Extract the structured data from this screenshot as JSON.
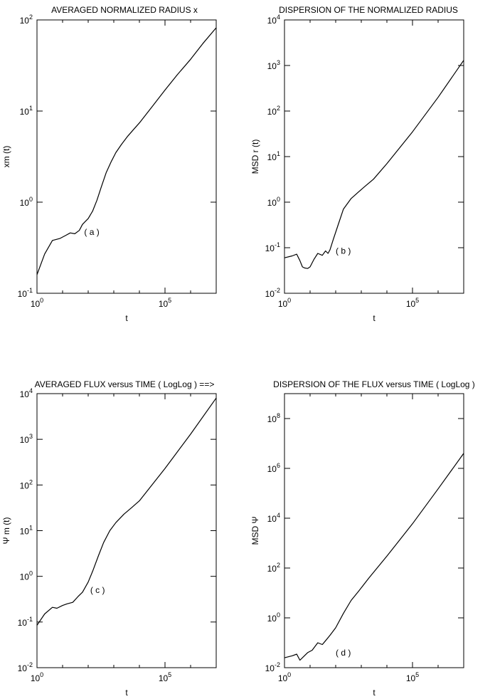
{
  "chart_data": [
    {
      "type": "line",
      "title": "AVERAGED NORMALIZED RADIUS x",
      "xlabel": "t",
      "ylabel": "xm (t)",
      "annotation": "( a )",
      "annotation_at": [
        70,
        0.47
      ],
      "x_scale": "log",
      "y_scale": "log",
      "xlim": [
        1,
        10000000
      ],
      "ylim": [
        0.1,
        100
      ],
      "x_ticks": [
        {
          "v": 1,
          "base": "10",
          "exp": "0"
        },
        {
          "v": 100000,
          "base": "10",
          "exp": "5"
        }
      ],
      "y_ticks": [
        {
          "v": 0.1,
          "base": "10",
          "exp": "-1"
        },
        {
          "v": 1,
          "base": "10",
          "exp": "0"
        },
        {
          "v": 10,
          "base": "10",
          "exp": "1"
        },
        {
          "v": 100,
          "base": "10",
          "exp": "2"
        }
      ],
      "grid": false,
      "series": [
        {
          "x": [
            1,
            2,
            4,
            8,
            13,
            20,
            30,
            45,
            60,
            80,
            100,
            150,
            220,
            320,
            500,
            800,
            1200,
            2000,
            3500,
            6000,
            10000,
            30000,
            100000,
            300000,
            1000000,
            3000000,
            10000000
          ],
          "y": [
            0.16,
            0.27,
            0.38,
            0.4,
            0.43,
            0.46,
            0.45,
            0.49,
            0.57,
            0.62,
            0.66,
            0.8,
            1.05,
            1.45,
            2.1,
            2.8,
            3.5,
            4.3,
            5.3,
            6.3,
            7.4,
            11,
            17,
            25,
            37,
            55,
            82
          ]
        }
      ]
    },
    {
      "type": "line",
      "title": "DISPERSION OF THE NORMALIZED RADIUS",
      "xlabel": "t",
      "ylabel": "MSD r (t)",
      "annotation": "( b )",
      "annotation_at": [
        100,
        0.085
      ],
      "x_scale": "log",
      "y_scale": "log",
      "xlim": [
        1,
        10000000
      ],
      "ylim": [
        0.01,
        10000
      ],
      "x_ticks": [
        {
          "v": 1,
          "base": "10",
          "exp": "0"
        },
        {
          "v": 100000,
          "base": "10",
          "exp": "5"
        }
      ],
      "y_ticks": [
        {
          "v": 0.01,
          "base": "10",
          "exp": "-2"
        },
        {
          "v": 0.1,
          "base": "10",
          "exp": "-1"
        },
        {
          "v": 1,
          "base": "10",
          "exp": "0"
        },
        {
          "v": 10,
          "base": "10",
          "exp": "1"
        },
        {
          "v": 100,
          "base": "10",
          "exp": "2"
        },
        {
          "v": 1000,
          "base": "10",
          "exp": "3"
        },
        {
          "v": 10000,
          "base": "10",
          "exp": "4"
        }
      ],
      "grid": false,
      "series": [
        {
          "x": [
            1,
            2,
            3,
            4,
            5,
            6,
            8,
            10,
            14,
            20,
            30,
            40,
            50,
            60,
            80,
            120,
            200,
            400,
            800,
            1500,
            3000,
            10000,
            100000,
            1000000,
            10000000
          ],
          "y": [
            0.06,
            0.066,
            0.072,
            0.052,
            0.038,
            0.036,
            0.035,
            0.038,
            0.055,
            0.075,
            0.068,
            0.085,
            0.075,
            0.09,
            0.15,
            0.3,
            0.7,
            1.2,
            1.7,
            2.3,
            3.2,
            7,
            35,
            200,
            1300
          ]
        }
      ]
    },
    {
      "type": "line",
      "title": "AVERAGED FLUX versus TIME ( LogLog ) ==>",
      "xlabel": "t",
      "ylabel": "Ψ m (t)",
      "annotation": "( c )",
      "annotation_at": [
        120,
        0.5
      ],
      "x_scale": "log",
      "y_scale": "log",
      "xlim": [
        1,
        10000000
      ],
      "ylim": [
        0.01,
        10000
      ],
      "x_ticks": [
        {
          "v": 1,
          "base": "10",
          "exp": "0"
        },
        {
          "v": 100000,
          "base": "10",
          "exp": "5"
        }
      ],
      "y_ticks": [
        {
          "v": 0.01,
          "base": "10",
          "exp": "-2"
        },
        {
          "v": 0.1,
          "base": "10",
          "exp": "-1"
        },
        {
          "v": 1,
          "base": "10",
          "exp": "0"
        },
        {
          "v": 10,
          "base": "10",
          "exp": "1"
        },
        {
          "v": 100,
          "base": "10",
          "exp": "2"
        },
        {
          "v": 1000,
          "base": "10",
          "exp": "3"
        },
        {
          "v": 10000,
          "base": "10",
          "exp": "4"
        }
      ],
      "grid": false,
      "series": [
        {
          "x": [
            1,
            2,
            4,
            6,
            10,
            15,
            25,
            40,
            60,
            100,
            150,
            250,
            400,
            700,
            1200,
            2500,
            5000,
            10000,
            100000,
            1000000,
            10000000
          ],
          "y": [
            0.085,
            0.15,
            0.21,
            0.2,
            0.23,
            0.25,
            0.27,
            0.36,
            0.45,
            0.75,
            1.3,
            2.8,
            5.5,
            10,
            15,
            23,
            32,
            45,
            230,
            1300,
            8000
          ]
        }
      ]
    },
    {
      "type": "line",
      "title": "DISPERSION OF THE FLUX versus TIME  ( LogLog )",
      "xlabel": "t",
      "ylabel": "MSD Ψ",
      "annotation": "( d )",
      "annotation_at": [
        100,
        0.04
      ],
      "x_scale": "log",
      "y_scale": "log",
      "xlim": [
        1,
        10000000
      ],
      "ylim": [
        0.01,
        1000000000
      ],
      "x_ticks": [
        {
          "v": 1,
          "base": "10",
          "exp": "0"
        },
        {
          "v": 100000,
          "base": "10",
          "exp": "5"
        }
      ],
      "y_ticks": [
        {
          "v": 0.01,
          "base": "10",
          "exp": "-2"
        },
        {
          "v": 1,
          "base": "10",
          "exp": "0"
        },
        {
          "v": 100,
          "base": "10",
          "exp": "2"
        },
        {
          "v": 10000,
          "base": "10",
          "exp": "4"
        },
        {
          "v": 1000000,
          "base": "10",
          "exp": "6"
        },
        {
          "v": 100000000,
          "base": "10",
          "exp": "8"
        }
      ],
      "grid": false,
      "series": [
        {
          "x": [
            1,
            2,
            3,
            4,
            6,
            8,
            12,
            20,
            30,
            40,
            60,
            100,
            200,
            400,
            800,
            2000,
            10000,
            100000,
            1000000,
            10000000
          ],
          "y": [
            0.025,
            0.03,
            0.035,
            0.02,
            0.03,
            0.04,
            0.05,
            0.1,
            0.085,
            0.12,
            0.2,
            0.4,
            1.5,
            5,
            12,
            40,
            300,
            6000,
            150000,
            4000000
          ]
        }
      ]
    }
  ]
}
